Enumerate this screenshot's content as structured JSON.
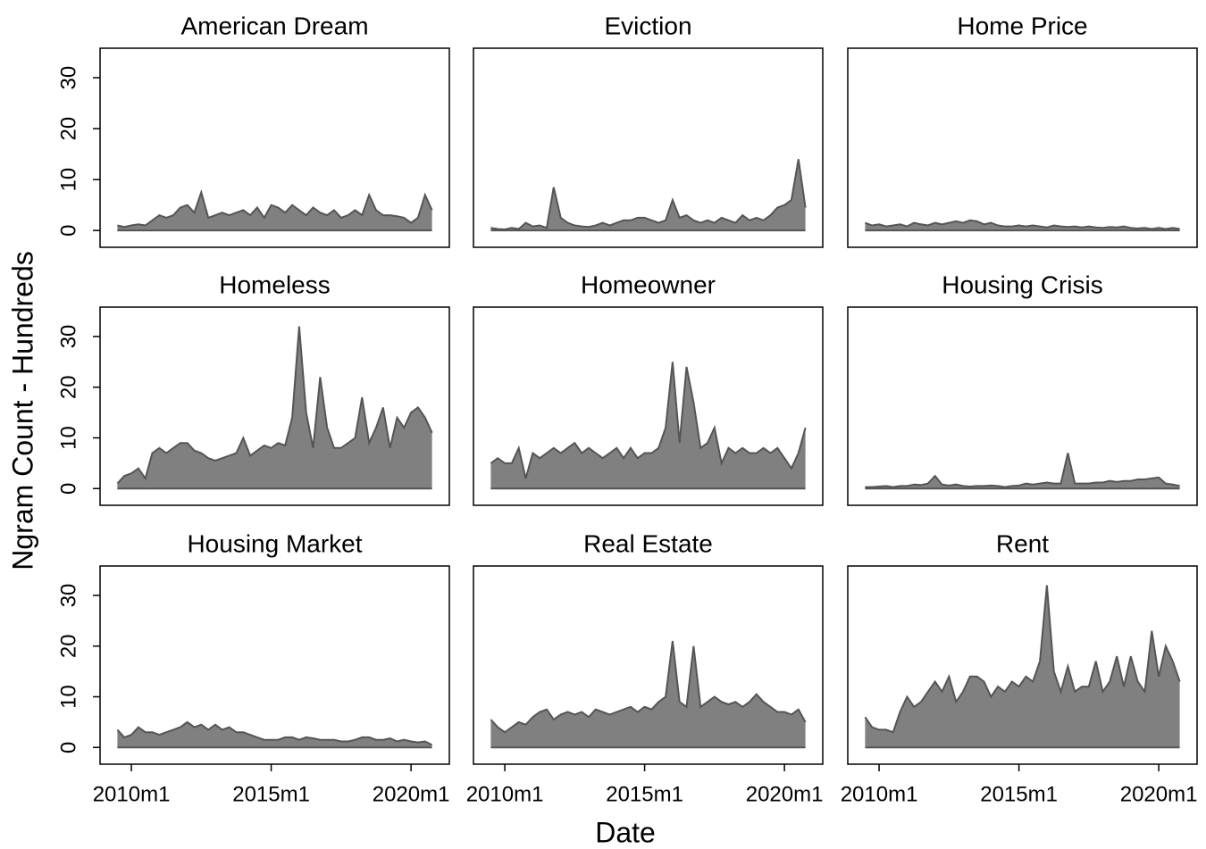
{
  "chart_data": {
    "type": "area",
    "xlabel": "Date",
    "ylabel": "Ngram Count - Hundreds",
    "color": "#808080",
    "line_color": "#555555",
    "xlim": [
      2008.88,
      2021.37
    ],
    "ylim": [
      -3.3,
      35.8
    ],
    "xticks": [
      {
        "value": 2010,
        "label": "2010m1"
      },
      {
        "value": 2015,
        "label": "2015m1"
      },
      {
        "value": 2020,
        "label": "2020m1"
      }
    ],
    "yticks": [
      0,
      10,
      20,
      30
    ],
    "x": [
      2009.5,
      2009.75,
      2010,
      2010.25,
      2010.5,
      2010.75,
      2011,
      2011.25,
      2011.5,
      2011.75,
      2012,
      2012.25,
      2012.5,
      2012.75,
      2013,
      2013.25,
      2013.5,
      2013.75,
      2014,
      2014.25,
      2014.5,
      2014.75,
      2015,
      2015.25,
      2015.5,
      2015.75,
      2016,
      2016.25,
      2016.5,
      2016.75,
      2017,
      2017.25,
      2017.5,
      2017.75,
      2018,
      2018.25,
      2018.5,
      2018.75,
      2019,
      2019.25,
      2019.5,
      2019.75,
      2020,
      2020.25,
      2020.5,
      2020.75
    ],
    "panels": [
      {
        "title": "American Dream",
        "values": [
          1,
          0.7,
          1,
          1.2,
          1,
          2,
          3,
          2.5,
          3,
          4.5,
          5,
          3.5,
          7.5,
          2.5,
          3,
          3.5,
          3,
          3.5,
          4,
          3,
          4.5,
          2.5,
          5,
          4.5,
          3.5,
          5,
          4,
          3,
          4.5,
          3.5,
          3,
          4,
          2.5,
          3,
          4,
          3,
          7,
          4,
          3,
          3,
          2.8,
          2.5,
          1.5,
          2.5,
          7,
          4
        ]
      },
      {
        "title": "Eviction",
        "values": [
          0.5,
          0.3,
          0.2,
          0.5,
          0.3,
          1.5,
          0.8,
          1,
          0.5,
          8.5,
          2.5,
          1.5,
          1,
          0.8,
          0.7,
          1,
          1.5,
          1,
          1.5,
          2,
          2,
          2.5,
          2.5,
          2,
          1.5,
          2,
          6,
          2.5,
          3,
          2,
          1.5,
          2,
          1.5,
          2.5,
          2,
          1.5,
          3,
          2,
          2.5,
          2,
          3,
          4.5,
          5,
          6,
          14,
          4.5
        ]
      },
      {
        "title": "Home Price",
        "values": [
          1.5,
          1,
          1.2,
          0.8,
          1,
          1.2,
          0.8,
          1.5,
          1.2,
          1,
          1.5,
          1.2,
          1.5,
          1.8,
          1.5,
          2,
          1.8,
          1.2,
          1.5,
          1,
          0.8,
          0.8,
          1,
          0.8,
          1,
          0.8,
          0.6,
          1,
          0.8,
          0.7,
          0.8,
          0.6,
          0.8,
          0.6,
          0.5,
          0.7,
          0.6,
          0.8,
          0.5,
          0.4,
          0.5,
          0.3,
          0.5,
          0.3,
          0.5,
          0.3
        ]
      },
      {
        "title": "Homeless",
        "values": [
          1,
          2.5,
          3,
          4,
          2,
          7,
          8,
          7,
          8,
          9,
          9,
          7.5,
          7,
          6,
          5.5,
          6,
          6.5,
          7,
          10,
          6.5,
          7.5,
          8.5,
          8,
          9,
          8.5,
          14,
          32,
          15,
          8,
          22,
          12,
          8,
          8,
          9,
          10,
          18,
          9,
          12,
          16,
          8,
          14,
          12,
          15,
          16,
          14,
          11
        ]
      },
      {
        "title": "Homeowner",
        "values": [
          5,
          6,
          5,
          5,
          8,
          2,
          7,
          6,
          7,
          8,
          7,
          8,
          9,
          7,
          8,
          7,
          6,
          7,
          8,
          6,
          8,
          6,
          7,
          7,
          8,
          12,
          25,
          9,
          24,
          17,
          8,
          9,
          12,
          5,
          8,
          7,
          8,
          7,
          7,
          8,
          7,
          8,
          6,
          4,
          7,
          12
        ]
      },
      {
        "title": "Housing Crisis",
        "values": [
          0.3,
          0.3,
          0.4,
          0.5,
          0.3,
          0.5,
          0.5,
          0.8,
          0.7,
          1,
          2.5,
          0.8,
          0.6,
          0.8,
          0.5,
          0.4,
          0.5,
          0.5,
          0.6,
          0.5,
          0.3,
          0.5,
          0.6,
          1,
          0.8,
          1,
          1.2,
          1,
          1,
          7,
          1,
          1,
          1,
          1.2,
          1.2,
          1.5,
          1.3,
          1.5,
          1.5,
          1.8,
          1.8,
          2,
          2.2,
          1,
          0.8,
          0.5
        ]
      },
      {
        "title": "Housing Market",
        "values": [
          3.5,
          2,
          2.5,
          4,
          3,
          3,
          2.5,
          3,
          3.5,
          4,
          5,
          4,
          4.5,
          3.5,
          4.5,
          3.5,
          4,
          3,
          3,
          2.5,
          2,
          1.5,
          1.5,
          1.5,
          2,
          2,
          1.5,
          2,
          1.8,
          1.5,
          1.5,
          1.5,
          1.2,
          1.2,
          1.5,
          2,
          2,
          1.5,
          1.5,
          1.8,
          1.2,
          1.5,
          1.2,
          1,
          1.2,
          0.5
        ]
      },
      {
        "title": "Real Estate",
        "values": [
          5.5,
          4,
          3,
          4,
          5,
          4.5,
          6,
          7,
          7.5,
          5.5,
          6.5,
          7,
          6.5,
          7,
          6,
          7.5,
          7,
          6.5,
          7,
          7.5,
          8,
          7,
          8,
          7.5,
          9,
          10,
          21,
          9,
          8,
          20,
          8,
          9,
          10,
          9,
          8.5,
          9,
          8,
          9,
          10.5,
          9,
          8,
          7,
          7,
          6.5,
          7.5,
          5
        ]
      },
      {
        "title": "Rent",
        "values": [
          6,
          4,
          3.5,
          3.5,
          3,
          7,
          10,
          8,
          9,
          11,
          13,
          11,
          14,
          9,
          11,
          14,
          14,
          13,
          10,
          12,
          11,
          13,
          12,
          14,
          13,
          17,
          32,
          15,
          11,
          16,
          11,
          12,
          12,
          17,
          11,
          13,
          18,
          12,
          18,
          13,
          11,
          23,
          14,
          20,
          17,
          13
        ]
      }
    ]
  }
}
